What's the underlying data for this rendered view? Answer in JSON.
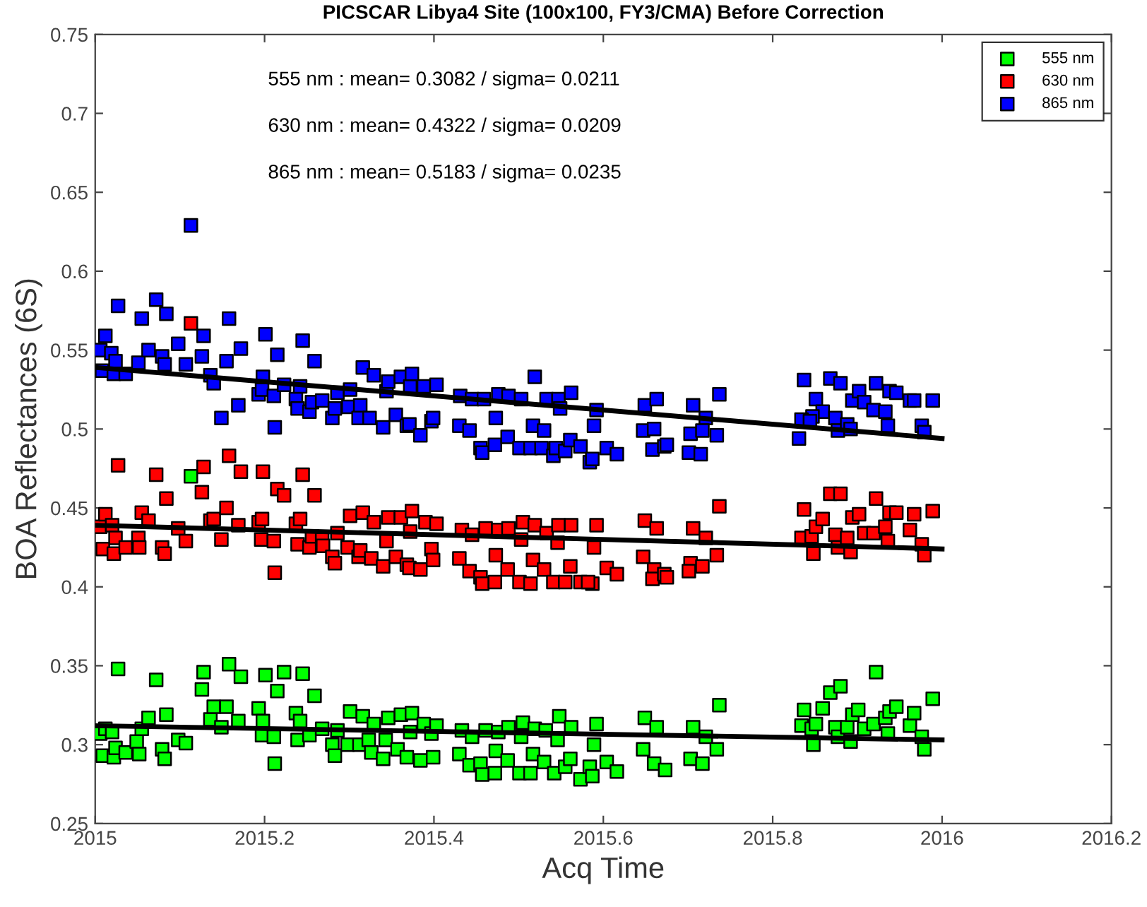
{
  "chart_data": {
    "type": "scatter",
    "title": "PICSCAR Libya4 Site (100x100, FY3/CMA) Before Correction",
    "xlabel": "Acq Time",
    "ylabel": "BOA Reflectances (6S)",
    "annotations": [
      "555 nm : mean= 0.3082 / sigma= 0.0211",
      "630 nm : mean= 0.4322 / sigma= 0.0209",
      "865 nm : mean= 0.5183 / sigma= 0.0235"
    ],
    "xlim": [
      2015,
      2016.2
    ],
    "xticks": [
      2015,
      2015.2,
      2015.4,
      2015.6,
      2015.8,
      2016,
      2016.2
    ],
    "ylim": [
      0.25,
      0.75
    ],
    "yticks": [
      0.25,
      0.3,
      0.35,
      0.4,
      0.45,
      0.5,
      0.55,
      0.6,
      0.65,
      0.7,
      0.75
    ],
    "grid": false,
    "legend": "top right",
    "marker": "square",
    "series": [
      {
        "name": "555 nm",
        "color": "#00ff00",
        "x": [
          2015.006,
          2015.012,
          2015.02,
          2015.027,
          2015.009,
          2015.022,
          2015.024,
          2015.036,
          2015.049,
          2015.052,
          2015.055,
          2015.063,
          2015.072,
          2015.079,
          2015.082,
          2015.084,
          2015.098,
          2015.107,
          2015.113,
          2015.126,
          2015.128,
          2015.136,
          2015.14,
          2015.149,
          2015.155,
          2015.158,
          2015.169,
          2015.172,
          2015.193,
          2015.197,
          2015.198,
          2015.201,
          2015.211,
          2015.212,
          2015.215,
          2015.223,
          2015.237,
          2015.239,
          2015.242,
          2015.245,
          2015.253,
          2015.259,
          2015.268,
          2015.28,
          2015.283,
          2015.286,
          2015.298,
          2015.301,
          2015.312,
          2015.316,
          2015.323,
          2015.326,
          2015.329,
          2015.34,
          2015.343,
          2015.346,
          2015.357,
          2015.361,
          2015.368,
          2015.372,
          2015.374,
          2015.384,
          2015.388,
          2015.397,
          2015.399,
          2015.403,
          2015.43,
          2015.433,
          2015.442,
          2015.445,
          2015.455,
          2015.457,
          2015.461,
          2015.472,
          2015.473,
          2015.476,
          2015.487,
          2015.488,
          2015.501,
          2015.503,
          2015.505,
          2015.514,
          2015.517,
          2015.519,
          2015.53,
          2015.532,
          2015.542,
          2015.546,
          2015.548,
          2015.555,
          2015.561,
          2015.562,
          2015.573,
          2015.592,
          2015.589,
          2015.584,
          2015.587,
          2015.604,
          2015.616,
          2015.649,
          2015.663,
          2015.647,
          2015.66,
          2015.673,
          2015.706,
          2015.721,
          2015.703,
          2015.717,
          2015.734,
          2015.737,
          2015.837,
          2015.834,
          2015.846,
          2015.848,
          2015.851,
          2015.859,
          2015.868,
          2015.88,
          2015.874,
          2015.877,
          2015.888,
          2015.892,
          2015.894,
          2015.901,
          2015.908,
          2015.919,
          2015.922,
          2015.933,
          2015.936,
          2015.938,
          2015.946,
          2015.962,
          2015.967,
          2015.976,
          2015.979,
          2015.989
        ],
        "values": [
          0.307,
          0.31,
          0.308,
          0.348,
          0.293,
          0.292,
          0.298,
          0.295,
          0.302,
          0.294,
          0.31,
          0.317,
          0.341,
          0.297,
          0.291,
          0.319,
          0.303,
          0.301,
          0.47,
          0.335,
          0.346,
          0.316,
          0.324,
          0.311,
          0.324,
          0.351,
          0.315,
          0.343,
          0.323,
          0.306,
          0.315,
          0.344,
          0.305,
          0.288,
          0.334,
          0.346,
          0.32,
          0.303,
          0.315,
          0.345,
          0.306,
          0.331,
          0.31,
          0.3,
          0.293,
          0.309,
          0.3,
          0.321,
          0.3,
          0.318,
          0.303,
          0.295,
          0.313,
          0.291,
          0.303,
          0.317,
          0.297,
          0.319,
          0.292,
          0.308,
          0.32,
          0.29,
          0.313,
          0.307,
          0.292,
          0.312,
          0.294,
          0.309,
          0.287,
          0.305,
          0.288,
          0.281,
          0.309,
          0.282,
          0.296,
          0.308,
          0.29,
          0.311,
          0.282,
          0.305,
          0.314,
          0.282,
          0.294,
          0.31,
          0.289,
          0.309,
          0.282,
          0.303,
          0.318,
          0.286,
          0.291,
          0.311,
          0.278,
          0.313,
          0.3,
          0.286,
          0.28,
          0.289,
          0.283,
          0.317,
          0.311,
          0.297,
          0.288,
          0.284,
          0.311,
          0.305,
          0.291,
          0.288,
          0.297,
          0.325,
          0.322,
          0.312,
          0.31,
          0.3,
          0.313,
          0.323,
          0.333,
          0.337,
          0.311,
          0.305,
          0.311,
          0.302,
          0.319,
          0.322,
          0.31,
          0.313,
          0.346,
          0.317,
          0.307,
          0.321,
          0.324,
          0.312,
          0.32,
          0.305,
          0.297,
          0.329
        ]
      },
      {
        "name": "630 nm",
        "color": "#ff0000",
        "x": [
          2015.006,
          2015.012,
          2015.02,
          2015.024,
          2015.009,
          2015.022,
          2015.036,
          2015.027,
          2015.051,
          2015.052,
          2015.055,
          2015.063,
          2015.072,
          2015.079,
          2015.082,
          2015.084,
          2015.098,
          2015.107,
          2015.113,
          2015.126,
          2015.128,
          2015.136,
          2015.14,
          2015.149,
          2015.155,
          2015.158,
          2015.169,
          2015.172,
          2015.193,
          2015.197,
          2015.198,
          2015.196,
          2015.211,
          2015.212,
          2015.215,
          2015.223,
          2015.237,
          2015.239,
          2015.242,
          2015.245,
          2015.253,
          2015.256,
          2015.259,
          2015.268,
          2015.269,
          2015.28,
          2015.283,
          2015.286,
          2015.298,
          2015.301,
          2015.311,
          2015.313,
          2015.316,
          2015.326,
          2015.329,
          2015.34,
          2015.344,
          2015.346,
          2015.355,
          2015.361,
          2015.368,
          2015.371,
          2015.372,
          2015.374,
          2015.384,
          2015.39,
          2015.397,
          2015.399,
          2015.403,
          2015.43,
          2015.433,
          2015.442,
          2015.445,
          2015.455,
          2015.457,
          2015.461,
          2015.472,
          2015.473,
          2015.476,
          2015.487,
          2015.488,
          2015.501,
          2015.503,
          2015.505,
          2015.514,
          2015.517,
          2015.519,
          2015.53,
          2015.533,
          2015.541,
          2015.546,
          2015.547,
          2015.555,
          2015.561,
          2015.562,
          2015.573,
          2015.592,
          2015.589,
          2015.587,
          2015.582,
          2015.604,
          2015.616,
          2015.649,
          2015.663,
          2015.647,
          2015.66,
          2015.658,
          2015.672,
          2015.675,
          2015.706,
          2015.721,
          2015.703,
          2015.717,
          2015.701,
          2015.734,
          2015.737,
          2015.837,
          2015.834,
          2015.846,
          2015.848,
          2015.851,
          2015.859,
          2015.868,
          2015.88,
          2015.874,
          2015.877,
          2015.888,
          2015.892,
          2015.894,
          2015.902,
          2015.908,
          2015.919,
          2015.922,
          2015.933,
          2015.936,
          2015.938,
          2015.946,
          2015.962,
          2015.967,
          2015.976,
          2015.979,
          2015.989
        ],
        "values": [
          0.438,
          0.446,
          0.439,
          0.431,
          0.424,
          0.421,
          0.425,
          0.477,
          0.431,
          0.425,
          0.447,
          0.442,
          0.471,
          0.425,
          0.421,
          0.456,
          0.437,
          0.429,
          0.567,
          0.46,
          0.476,
          0.442,
          0.443,
          0.43,
          0.45,
          0.483,
          0.439,
          0.473,
          0.441,
          0.443,
          0.473,
          0.43,
          0.429,
          0.409,
          0.462,
          0.458,
          0.44,
          0.427,
          0.443,
          0.471,
          0.425,
          0.432,
          0.458,
          0.43,
          0.426,
          0.419,
          0.415,
          0.434,
          0.425,
          0.445,
          0.419,
          0.423,
          0.447,
          0.418,
          0.441,
          0.413,
          0.429,
          0.444,
          0.419,
          0.444,
          0.414,
          0.412,
          0.435,
          0.448,
          0.411,
          0.441,
          0.424,
          0.417,
          0.44,
          0.418,
          0.436,
          0.41,
          0.433,
          0.406,
          0.402,
          0.437,
          0.403,
          0.42,
          0.436,
          0.411,
          0.437,
          0.403,
          0.43,
          0.441,
          0.402,
          0.417,
          0.439,
          0.411,
          0.434,
          0.403,
          0.428,
          0.439,
          0.403,
          0.413,
          0.439,
          0.403,
          0.439,
          0.425,
          0.402,
          0.403,
          0.412,
          0.408,
          0.442,
          0.437,
          0.419,
          0.411,
          0.405,
          0.408,
          0.406,
          0.437,
          0.431,
          0.415,
          0.413,
          0.41,
          0.42,
          0.451,
          0.449,
          0.431,
          0.432,
          0.421,
          0.438,
          0.443,
          0.459,
          0.459,
          0.433,
          0.425,
          0.431,
          0.422,
          0.444,
          0.446,
          0.434,
          0.434,
          0.456,
          0.438,
          0.429,
          0.447,
          0.447,
          0.436,
          0.446,
          0.427,
          0.42,
          0.448
        ]
      },
      {
        "name": "865 nm",
        "color": "#0000ff",
        "x": [
          2015.006,
          2015.012,
          2015.027,
          2015.019,
          2015.024,
          2015.008,
          2015.022,
          2015.036,
          2015.051,
          2015.055,
          2015.063,
          2015.072,
          2015.079,
          2015.082,
          2015.084,
          2015.098,
          2015.107,
          2015.113,
          2015.126,
          2015.128,
          2015.136,
          2015.14,
          2015.149,
          2015.155,
          2015.158,
          2015.169,
          2015.172,
          2015.193,
          2015.197,
          2015.198,
          2015.201,
          2015.211,
          2015.212,
          2015.215,
          2015.223,
          2015.237,
          2015.239,
          2015.242,
          2015.245,
          2015.253,
          2015.256,
          2015.259,
          2015.268,
          2015.28,
          2015.283,
          2015.286,
          2015.299,
          2015.301,
          2015.311,
          2015.313,
          2015.316,
          2015.324,
          2015.329,
          2015.34,
          2015.344,
          2015.346,
          2015.355,
          2015.361,
          2015.368,
          2015.371,
          2015.372,
          2015.374,
          2015.384,
          2015.388,
          2015.397,
          2015.399,
          2015.403,
          2015.43,
          2015.431,
          2015.442,
          2015.445,
          2015.455,
          2015.457,
          2015.459,
          2015.472,
          2015.473,
          2015.476,
          2015.487,
          2015.488,
          2015.501,
          2015.503,
          2015.514,
          2015.517,
          2015.519,
          2015.527,
          2015.53,
          2015.533,
          2015.541,
          2015.544,
          2015.547,
          2015.549,
          2015.555,
          2015.561,
          2015.562,
          2015.573,
          2015.592,
          2015.589,
          2015.584,
          2015.587,
          2015.604,
          2015.616,
          2015.649,
          2015.663,
          2015.647,
          2015.66,
          2015.658,
          2015.672,
          2015.675,
          2015.706,
          2015.721,
          2015.703,
          2015.717,
          2015.734,
          2015.701,
          2015.715,
          2015.737,
          2015.837,
          2015.868,
          2015.88,
          2015.851,
          2015.859,
          2015.847,
          2015.834,
          2015.844,
          2015.831,
          2015.874,
          2015.877,
          2015.888,
          2015.892,
          2015.894,
          2015.902,
          2015.908,
          2015.919,
          2015.922,
          2015.933,
          2015.936,
          2015.938,
          2015.946,
          2015.962,
          2015.967,
          2015.976,
          2015.979,
          2015.989
        ],
        "values": [
          0.55,
          0.559,
          0.578,
          0.548,
          0.543,
          0.537,
          0.535,
          0.535,
          0.542,
          0.57,
          0.55,
          0.582,
          0.546,
          0.541,
          0.573,
          0.554,
          0.541,
          0.629,
          0.546,
          0.559,
          0.534,
          0.529,
          0.507,
          0.543,
          0.57,
          0.515,
          0.551,
          0.522,
          0.525,
          0.533,
          0.56,
          0.521,
          0.501,
          0.547,
          0.528,
          0.519,
          0.513,
          0.527,
          0.556,
          0.511,
          0.517,
          0.543,
          0.518,
          0.507,
          0.513,
          0.523,
          0.514,
          0.525,
          0.507,
          0.515,
          0.539,
          0.507,
          0.534,
          0.501,
          0.524,
          0.53,
          0.509,
          0.533,
          0.502,
          0.503,
          0.527,
          0.535,
          0.496,
          0.527,
          0.505,
          0.507,
          0.528,
          0.502,
          0.521,
          0.499,
          0.519,
          0.488,
          0.485,
          0.519,
          0.49,
          0.507,
          0.522,
          0.495,
          0.521,
          0.488,
          0.519,
          0.488,
          0.502,
          0.533,
          0.488,
          0.499,
          0.519,
          0.483,
          0.488,
          0.519,
          0.513,
          0.486,
          0.493,
          0.523,
          0.489,
          0.512,
          0.502,
          0.479,
          0.481,
          0.488,
          0.484,
          0.515,
          0.519,
          0.499,
          0.5,
          0.487,
          0.489,
          0.49,
          0.515,
          0.507,
          0.497,
          0.499,
          0.496,
          0.485,
          0.484,
          0.522,
          0.531,
          0.532,
          0.529,
          0.519,
          0.511,
          0.508,
          0.506,
          0.505,
          0.494,
          0.507,
          0.499,
          0.503,
          0.5,
          0.518,
          0.524,
          0.517,
          0.512,
          0.529,
          0.511,
          0.502,
          0.524,
          0.523,
          0.518,
          0.518,
          0.502,
          0.498,
          0.518
        ]
      },
      {
        "type": "line",
        "marker": "none",
        "color": "#000000",
        "x": [
          2015,
          2016
        ],
        "values": [
          0.312,
          0.303
        ]
      },
      {
        "type": "line",
        "marker": "none",
        "color": "#000000",
        "x": [
          2015,
          2016
        ],
        "values": [
          0.439,
          0.424
        ]
      },
      {
        "type": "line",
        "marker": "none",
        "color": "#000000",
        "x": [
          2015,
          2016
        ],
        "values": [
          0.539,
          0.494
        ]
      }
    ]
  }
}
